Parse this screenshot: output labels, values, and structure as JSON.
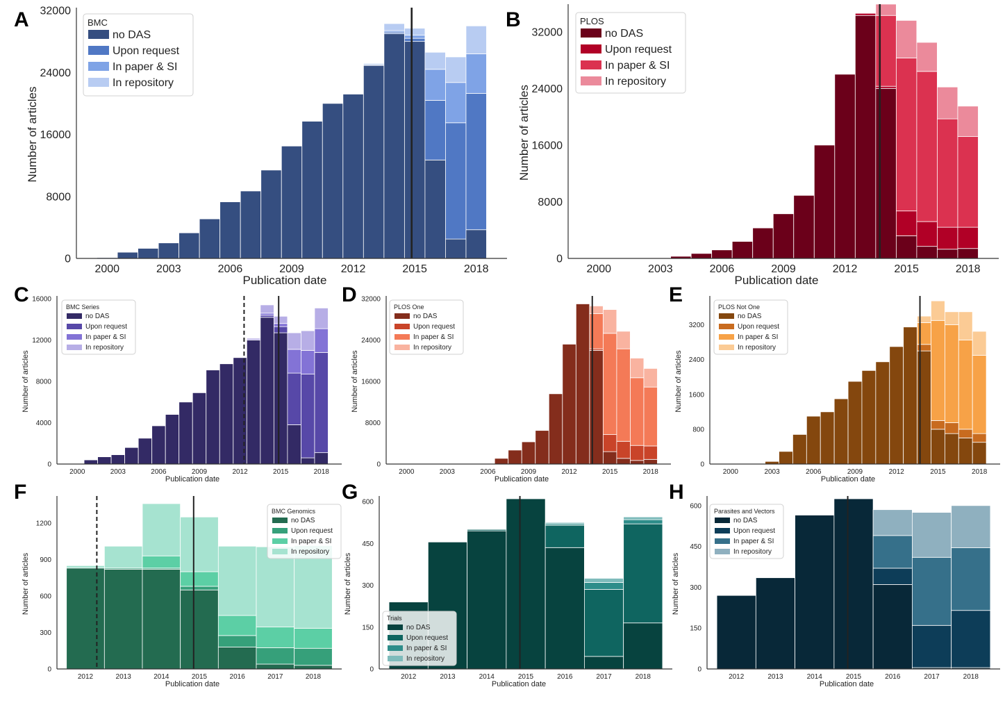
{
  "legend_labels": [
    "no DAS",
    "Upon request",
    "In paper & SI",
    "In repository"
  ],
  "x_axis_label": "Publication date",
  "y_axis_label": "Number of articles",
  "chart_data": [
    {
      "panel": "A",
      "type": "bar",
      "stacked": true,
      "legend_title": "BMC",
      "legend_position": "top-left",
      "colors": [
        "#354e80",
        "#5078c4",
        "#7fa3e6",
        "#b8ccf2"
      ],
      "x": [
        2000,
        2001,
        2002,
        2003,
        2004,
        2005,
        2006,
        2007,
        2008,
        2009,
        2010,
        2011,
        2012,
        2013,
        2014,
        2015,
        2016,
        2017,
        2018
      ],
      "series": [
        {
          "name": "no DAS",
          "values": [
            100,
            800,
            1300,
            2000,
            3300,
            5100,
            7300,
            8700,
            11400,
            14500,
            17700,
            20000,
            21200,
            24900,
            29000,
            28000,
            12700,
            2500,
            3700
          ]
        },
        {
          "name": "Upon request",
          "values": [
            0,
            0,
            0,
            0,
            0,
            0,
            0,
            0,
            0,
            0,
            0,
            0,
            0,
            100,
            200,
            400,
            7700,
            15000,
            17600
          ]
        },
        {
          "name": "In paper & SI",
          "values": [
            0,
            0,
            0,
            0,
            0,
            0,
            0,
            0,
            0,
            0,
            0,
            0,
            0,
            100,
            200,
            400,
            4000,
            5200,
            5100
          ]
        },
        {
          "name": "In repository",
          "values": [
            0,
            0,
            0,
            0,
            0,
            0,
            0,
            0,
            0,
            0,
            0,
            0,
            0,
            100,
            900,
            900,
            2200,
            3300,
            3600
          ]
        }
      ],
      "xticks": [
        2000,
        2003,
        2006,
        2009,
        2012,
        2015,
        2018
      ],
      "yticks": [
        0,
        8000,
        16000,
        24000,
        32000
      ],
      "xlim": [
        1998.5,
        2019.5
      ],
      "ylim": [
        0,
        32000
      ],
      "vlines": [
        {
          "x": 2014.85,
          "style": "solid"
        }
      ]
    },
    {
      "panel": "B",
      "type": "bar",
      "stacked": true,
      "legend_title": "PLOS",
      "legend_position": "top-left",
      "colors": [
        "#6b001a",
        "#b10026",
        "#db3250",
        "#eb8a9b"
      ],
      "x": [
        2000,
        2001,
        2002,
        2003,
        2004,
        2005,
        2006,
        2007,
        2008,
        2009,
        2010,
        2011,
        2012,
        2013,
        2014,
        2015,
        2016,
        2017,
        2018
      ],
      "series": [
        {
          "name": "no DAS",
          "values": [
            0,
            0,
            0,
            50,
            300,
            700,
            1200,
            2400,
            4300,
            6300,
            8900,
            16000,
            26000,
            34300,
            24000,
            3200,
            1700,
            1300,
            1400
          ]
        },
        {
          "name": "Upon request",
          "values": [
            0,
            0,
            0,
            0,
            0,
            0,
            0,
            0,
            0,
            0,
            0,
            0,
            0,
            300,
            300,
            3500,
            3500,
            3100,
            3000
          ]
        },
        {
          "name": "In paper & SI",
          "values": [
            0,
            0,
            0,
            0,
            0,
            0,
            0,
            0,
            0,
            0,
            0,
            0,
            0,
            0,
            10000,
            21600,
            21200,
            15300,
            12800
          ]
        },
        {
          "name": "In repository",
          "values": [
            0,
            0,
            0,
            0,
            0,
            0,
            0,
            0,
            0,
            0,
            0,
            0,
            0,
            0,
            1600,
            5300,
            4100,
            4500,
            4300
          ]
        }
      ],
      "xticks": [
        2000,
        2003,
        2006,
        2009,
        2012,
        2015,
        2018
      ],
      "yticks": [
        0,
        8000,
        16000,
        24000,
        32000
      ],
      "xlim": [
        1998.5,
        2019.5
      ],
      "ylim": [
        0,
        35500
      ],
      "vlines": [
        {
          "x": 2013.7,
          "style": "solid"
        }
      ]
    },
    {
      "panel": "C",
      "type": "bar",
      "stacked": true,
      "legend_title": "BMC Series",
      "legend_position": "top-left",
      "colors": [
        "#332a65",
        "#5748a8",
        "#8373d6",
        "#b7aee6"
      ],
      "x": [
        2000,
        2001,
        2002,
        2003,
        2004,
        2005,
        2006,
        2007,
        2008,
        2009,
        2010,
        2011,
        2012,
        2013,
        2014,
        2015,
        2016,
        2017,
        2018
      ],
      "series": [
        {
          "name": "no DAS",
          "values": [
            0,
            400,
            700,
            900,
            1600,
            2500,
            3700,
            4800,
            6000,
            6900,
            9100,
            9700,
            10300,
            12000,
            14200,
            12700,
            3800,
            600,
            1100
          ]
        },
        {
          "name": "Upon request",
          "values": [
            0,
            0,
            0,
            0,
            0,
            0,
            0,
            0,
            0,
            0,
            0,
            0,
            0,
            0,
            200,
            600,
            5000,
            8100,
            9700
          ]
        },
        {
          "name": "In paper & SI",
          "values": [
            0,
            0,
            0,
            0,
            0,
            0,
            0,
            0,
            0,
            0,
            0,
            0,
            0,
            100,
            200,
            300,
            2300,
            2300,
            2300
          ]
        },
        {
          "name": "In repository",
          "values": [
            0,
            0,
            0,
            0,
            0,
            0,
            0,
            0,
            0,
            0,
            0,
            0,
            0,
            100,
            800,
            700,
            1600,
            1900,
            2000
          ]
        }
      ],
      "xticks": [
        2000,
        2003,
        2006,
        2009,
        2012,
        2015,
        2018
      ],
      "yticks": [
        0,
        4000,
        8000,
        12000,
        16000
      ],
      "xlim": [
        1998.5,
        2019.5
      ],
      "ylim": [
        0,
        16000
      ],
      "vlines": [
        {
          "x": 2012.3,
          "style": "dashed"
        },
        {
          "x": 2014.85,
          "style": "solid"
        }
      ]
    },
    {
      "panel": "D",
      "type": "bar",
      "stacked": true,
      "legend_title": "PLOS One",
      "legend_position": "top-left",
      "colors": [
        "#842d1c",
        "#c94429",
        "#f47a57",
        "#f9b3a0"
      ],
      "x": [
        2000,
        2001,
        2002,
        2003,
        2004,
        2005,
        2006,
        2007,
        2008,
        2009,
        2010,
        2011,
        2012,
        2013,
        2014,
        2015,
        2016,
        2017,
        2018
      ],
      "series": [
        {
          "name": "no DAS",
          "values": [
            0,
            0,
            0,
            0,
            0,
            0,
            0,
            1100,
            2700,
            4300,
            6500,
            13600,
            23200,
            31000,
            22000,
            2400,
            1100,
            700,
            900
          ]
        },
        {
          "name": "Upon request",
          "values": [
            0,
            0,
            0,
            0,
            0,
            0,
            0,
            0,
            0,
            0,
            0,
            0,
            0,
            0,
            300,
            3300,
            3300,
            2900,
            2600
          ]
        },
        {
          "name": "In paper & SI",
          "values": [
            0,
            0,
            0,
            0,
            0,
            0,
            0,
            0,
            0,
            0,
            0,
            0,
            0,
            0,
            6800,
            19600,
            17900,
            13100,
            11400
          ]
        },
        {
          "name": "In repository",
          "values": [
            0,
            0,
            0,
            0,
            0,
            0,
            0,
            0,
            0,
            0,
            0,
            0,
            0,
            0,
            1500,
            4600,
            3400,
            3800,
            3600
          ]
        }
      ],
      "xticks": [
        2000,
        2003,
        2006,
        2009,
        2012,
        2015,
        2018
      ],
      "yticks": [
        0,
        8000,
        16000,
        24000,
        32000
      ],
      "xlim": [
        1998.5,
        2019.5
      ],
      "ylim": [
        0,
        32000
      ],
      "vlines": [
        {
          "x": 2013.7,
          "style": "solid"
        }
      ]
    },
    {
      "panel": "E",
      "type": "bar",
      "stacked": true,
      "legend_title": "PLOS Not One",
      "legend_position": "top-left",
      "colors": [
        "#84470e",
        "#c86b1f",
        "#f7a247",
        "#fbcb95"
      ],
      "x": [
        2000,
        2001,
        2002,
        2003,
        2004,
        2005,
        2006,
        2007,
        2008,
        2009,
        2010,
        2011,
        2012,
        2013,
        2014,
        2015,
        2016,
        2017,
        2018
      ],
      "series": [
        {
          "name": "no DAS",
          "values": [
            0,
            0,
            0,
            60,
            290,
            680,
            1100,
            1200,
            1500,
            1900,
            2150,
            2350,
            2700,
            3150,
            2600,
            800,
            700,
            600,
            500
          ]
        },
        {
          "name": "Upon request",
          "values": [
            0,
            0,
            0,
            0,
            0,
            0,
            0,
            0,
            0,
            0,
            0,
            0,
            0,
            0,
            150,
            200,
            250,
            200,
            200
          ]
        },
        {
          "name": "In paper & SI",
          "values": [
            0,
            0,
            0,
            0,
            0,
            0,
            0,
            0,
            0,
            0,
            0,
            0,
            0,
            0,
            500,
            2300,
            2250,
            2050,
            1800
          ]
        },
        {
          "name": "In repository",
          "values": [
            0,
            0,
            0,
            0,
            0,
            0,
            0,
            0,
            0,
            0,
            0,
            0,
            0,
            0,
            150,
            450,
            300,
            650,
            550
          ]
        }
      ],
      "xticks": [
        2000,
        2003,
        2006,
        2009,
        2012,
        2015,
        2018
      ],
      "yticks": [
        0,
        800,
        1600,
        2400,
        3200
      ],
      "xlim": [
        1998.5,
        2019.5
      ],
      "ylim": [
        0,
        3800
      ],
      "vlines": [
        {
          "x": 2013.7,
          "style": "solid"
        }
      ]
    },
    {
      "panel": "F",
      "type": "bar",
      "stacked": true,
      "legend_title": "BMC Genomics",
      "legend_position": "top-right",
      "colors": [
        "#236b50",
        "#36a07a",
        "#5ccfa5",
        "#a6e3d0"
      ],
      "x": [
        2012,
        2013,
        2014,
        2015,
        2016,
        2017,
        2018
      ],
      "series": [
        {
          "name": "no DAS",
          "values": [
            830,
            820,
            820,
            650,
            180,
            40,
            30
          ]
        },
        {
          "name": "Upon request",
          "values": [
            0,
            10,
            10,
            30,
            95,
            135,
            140
          ]
        },
        {
          "name": "In paper & SI",
          "values": [
            0,
            0,
            100,
            120,
            165,
            170,
            165
          ]
        },
        {
          "name": "In repository",
          "values": [
            20,
            180,
            430,
            450,
            570,
            660,
            680
          ]
        }
      ],
      "xticks": [
        2012,
        2013,
        2014,
        2015,
        2016,
        2017,
        2018
      ],
      "yticks": [
        0,
        300,
        600,
        900,
        1200
      ],
      "xlim": [
        2011.25,
        2018.75
      ],
      "ylim": [
        0,
        1400
      ],
      "vlines": [
        {
          "x": 2012.3,
          "style": "dashed"
        },
        {
          "x": 2014.85,
          "style": "solid"
        }
      ]
    },
    {
      "panel": "G",
      "type": "bar",
      "stacked": true,
      "legend_title": "Trials",
      "legend_position": "bottom-left",
      "colors": [
        "#07433f",
        "#0f6560",
        "#2e8d8a",
        "#7ebbbb"
      ],
      "x": [
        2012,
        2013,
        2014,
        2015,
        2016,
        2017,
        2018
      ],
      "series": [
        {
          "name": "no DAS",
          "values": [
            240,
            455,
            495,
            610,
            435,
            45,
            165
          ]
        },
        {
          "name": "Upon request",
          "values": [
            0,
            0,
            5,
            0,
            80,
            240,
            355
          ]
        },
        {
          "name": "In paper & SI",
          "values": [
            0,
            0,
            0,
            0,
            5,
            25,
            15
          ]
        },
        {
          "name": "In repository",
          "values": [
            0,
            0,
            0,
            0,
            5,
            15,
            10
          ]
        }
      ],
      "xticks": [
        2012,
        2013,
        2014,
        2015,
        2016,
        2017,
        2018
      ],
      "yticks": [
        0,
        150,
        300,
        450,
        600
      ],
      "xlim": [
        2011.25,
        2018.75
      ],
      "ylim": [
        0,
        610
      ],
      "vlines": [
        {
          "x": 2014.85,
          "style": "solid"
        }
      ]
    },
    {
      "panel": "H",
      "type": "bar",
      "stacked": true,
      "legend_title": "Parasites and Vectors",
      "legend_position": "top-left",
      "colors": [
        "#082838",
        "#0d3d58",
        "#36708a",
        "#8fb0bf"
      ],
      "x": [
        2012,
        2013,
        2014,
        2015,
        2016,
        2017,
        2018
      ],
      "series": [
        {
          "name": "no DAS",
          "values": [
            270,
            335,
            565,
            625,
            310,
            5,
            5
          ]
        },
        {
          "name": "Upon request",
          "values": [
            0,
            0,
            0,
            0,
            60,
            155,
            210
          ]
        },
        {
          "name": "In paper & SI",
          "values": [
            0,
            0,
            0,
            0,
            120,
            250,
            230
          ]
        },
        {
          "name": "In repository",
          "values": [
            0,
            0,
            0,
            0,
            95,
            165,
            155
          ]
        }
      ],
      "xticks": [
        2012,
        2013,
        2014,
        2015,
        2016,
        2017,
        2018
      ],
      "yticks": [
        0,
        150,
        300,
        450,
        600
      ],
      "xlim": [
        2011.25,
        2018.75
      ],
      "ylim": [
        0,
        625
      ],
      "vlines": [
        {
          "x": 2014.85,
          "style": "solid"
        }
      ]
    }
  ]
}
